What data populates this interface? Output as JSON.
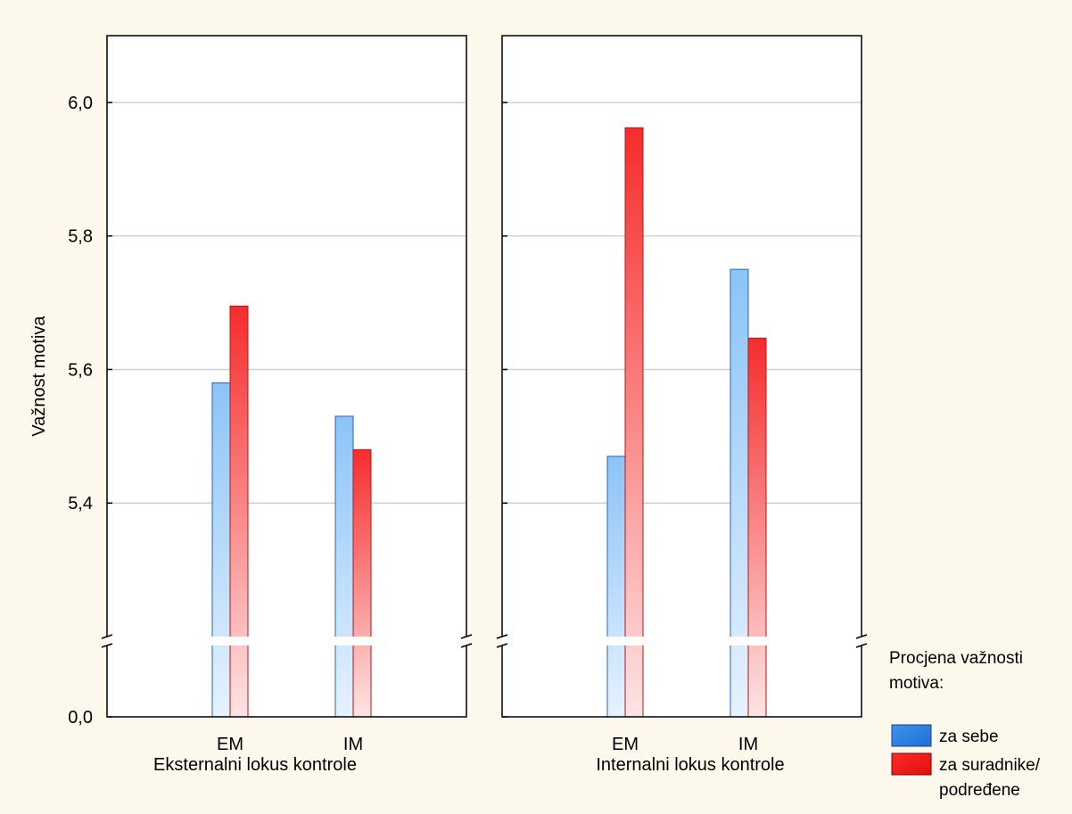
{
  "chart_data": {
    "type": "bar",
    "ylabel": "Važnost motiva",
    "ylim_upper": [
      5.2,
      6.1
    ],
    "ylim_lower": [
      0.0,
      5.2
    ],
    "y_axis_break": true,
    "yticks": [
      {
        "value": 0.0,
        "label": "0,0"
      },
      {
        "value": 5.4,
        "label": "5,4"
      },
      {
        "value": 5.6,
        "label": "5,6"
      },
      {
        "value": 5.8,
        "label": "5,8"
      },
      {
        "value": 6.0,
        "label": "6,0"
      }
    ],
    "grid": true,
    "legend": {
      "title_line1": "Procjena važnosti",
      "title_line2": "motiva:",
      "placement": "bottom-right",
      "entries": [
        {
          "series": 0,
          "line1": "za sebe",
          "line2": ""
        },
        {
          "series": 1,
          "line1": "za suradnike/",
          "line2": "podređene"
        }
      ]
    },
    "series_colors": [
      "#3a8ee8",
      "#ee2222"
    ],
    "panels": [
      {
        "title": "Eksternalni lokus kontrole",
        "categories": [
          "EM",
          "IM"
        ],
        "series": [
          {
            "name": "za sebe",
            "values": [
              5.58,
              5.53
            ]
          },
          {
            "name": "za suradnike/podređene",
            "values": [
              5.695,
              5.48
            ]
          }
        ]
      },
      {
        "title": "Internalni lokus kontrole",
        "categories": [
          "EM",
          "IM"
        ],
        "series": [
          {
            "name": "za sebe",
            "values": [
              5.47,
              5.75
            ]
          },
          {
            "name": "za suradnike/podređene",
            "values": [
              5.962,
              5.647
            ]
          }
        ]
      }
    ]
  }
}
